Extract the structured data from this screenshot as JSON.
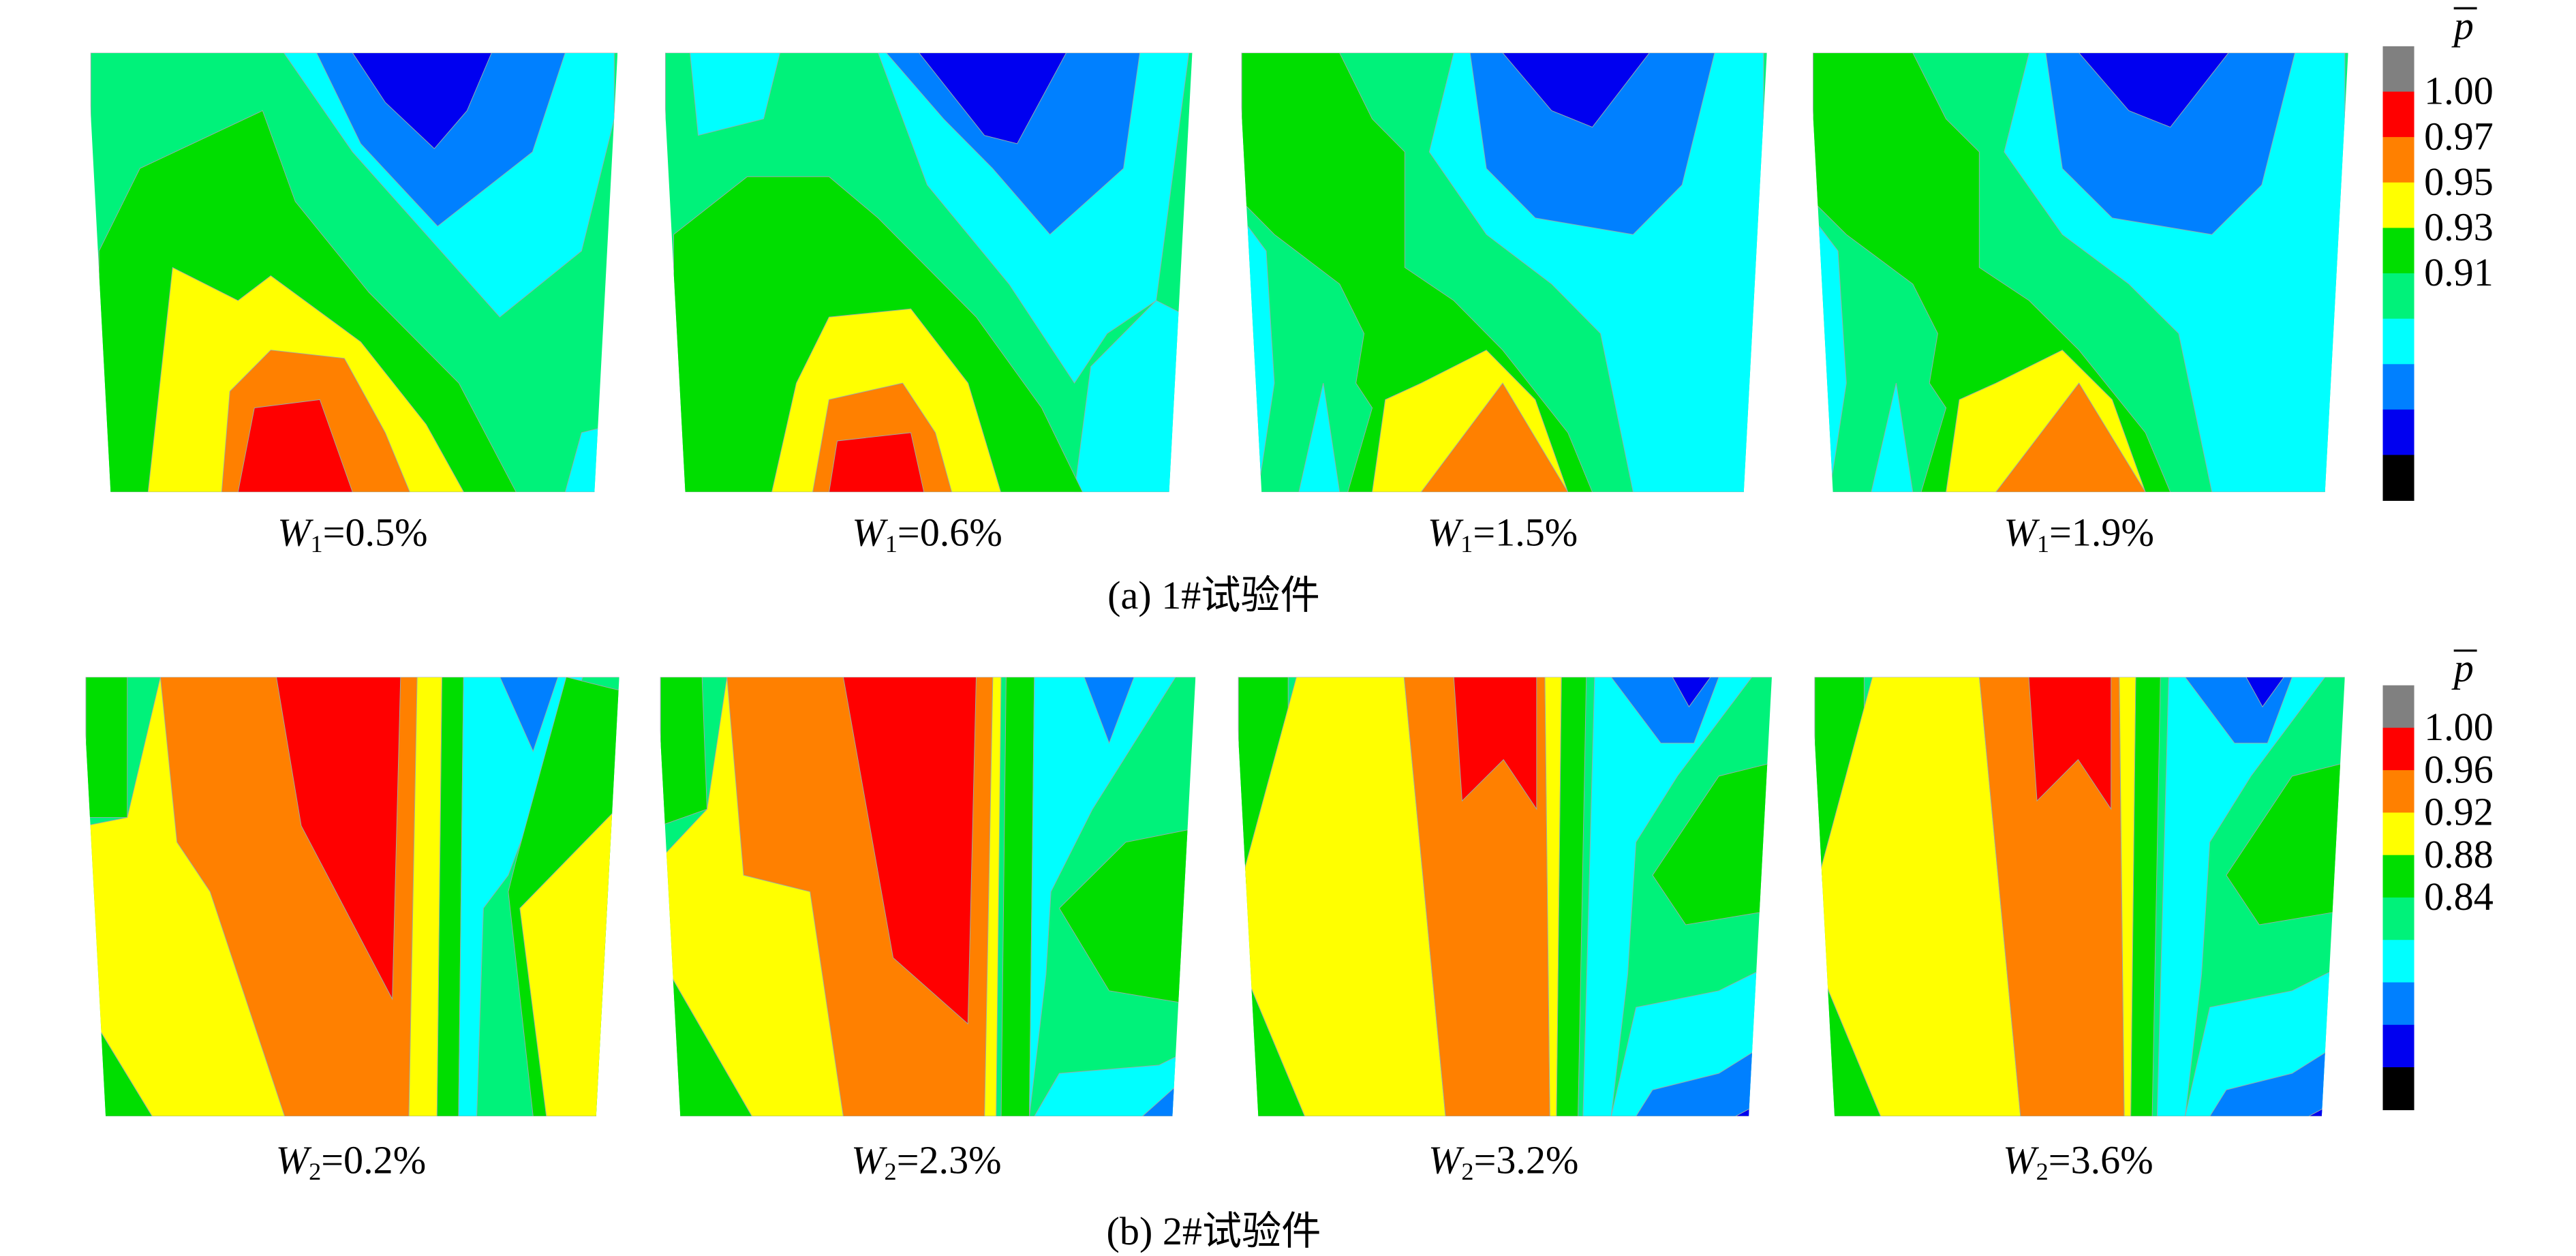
{
  "panels": [
    {
      "caption": "(a) 1#试验件",
      "colorbar": {
        "symbol": "p",
        "ticks": [
          "1.00",
          "0.97",
          "0.95",
          "0.93",
          "0.91"
        ]
      },
      "plots": [
        {
          "var": "W",
          "sub": "1",
          "value": "=0.5%"
        },
        {
          "var": "W",
          "sub": "1",
          "value": "=0.6%"
        },
        {
          "var": "W",
          "sub": "1",
          "value": "=1.5%"
        },
        {
          "var": "W",
          "sub": "1",
          "value": "=1.9%"
        }
      ]
    },
    {
      "caption": "(b) 2#试验件",
      "colorbar": {
        "symbol": "p",
        "ticks": [
          "1.00",
          "0.96",
          "0.92",
          "0.88",
          "0.84"
        ]
      },
      "plots": [
        {
          "var": "W",
          "sub": "2",
          "value": "=0.2%"
        },
        {
          "var": "W",
          "sub": "2",
          "value": "=2.3%"
        },
        {
          "var": "W",
          "sub": "2",
          "value": "=3.2%"
        },
        {
          "var": "W",
          "sub": "2",
          "value": "=3.6%"
        }
      ]
    }
  ]
}
